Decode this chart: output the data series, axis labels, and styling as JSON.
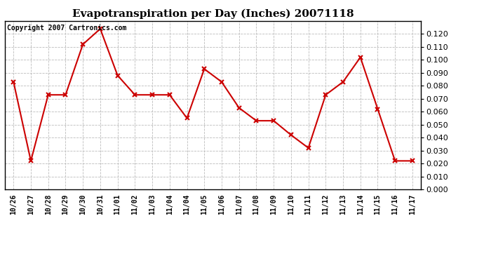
{
  "title": "Evapotranspiration per Day (Inches) 20071118",
  "copyright_text": "Copyright 2007 Cartronics.com",
  "x_labels": [
    "10/26",
    "10/27",
    "10/28",
    "10/29",
    "10/30",
    "10/31",
    "11/01",
    "11/02",
    "11/03",
    "11/04",
    "11/04",
    "11/05",
    "11/06",
    "11/07",
    "11/08",
    "11/09",
    "11/10",
    "11/11",
    "11/12",
    "11/13",
    "11/14",
    "11/15",
    "11/16",
    "11/17"
  ],
  "y_values": [
    0.083,
    0.022,
    0.073,
    0.073,
    0.112,
    0.124,
    0.088,
    0.073,
    0.073,
    0.073,
    0.055,
    0.093,
    0.083,
    0.063,
    0.053,
    0.053,
    0.042,
    0.032,
    0.073,
    0.083,
    0.102,
    0.062,
    0.022,
    0.022
  ],
  "line_color": "#cc0000",
  "marker": "x",
  "marker_size": 5,
  "marker_linewidth": 1.5,
  "line_width": 1.5,
  "grid_color": "#bbbbbb",
  "bg_color": "#ffffff",
  "ylim": [
    0.0,
    0.13
  ],
  "yticks": [
    0.0,
    0.01,
    0.02,
    0.03,
    0.04,
    0.05,
    0.06,
    0.07,
    0.08,
    0.09,
    0.1,
    0.11,
    0.12
  ],
  "title_fontsize": 11,
  "copyright_fontsize": 7,
  "tick_fontsize": 7,
  "ytick_fontsize": 8
}
